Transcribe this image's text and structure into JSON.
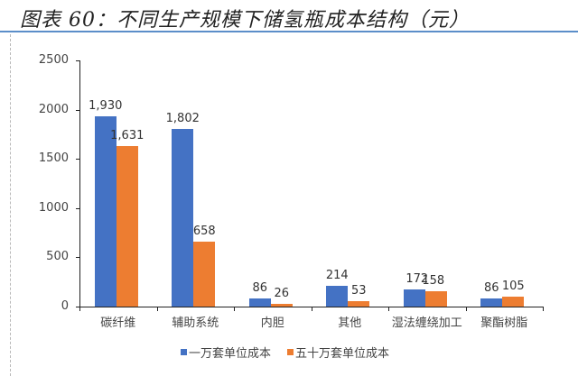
{
  "header": {
    "title": "图表 60：不同生产规模下储氢瓶成本结构（元）"
  },
  "colors": {
    "series1": "#4472C4",
    "series2": "#ED7D31",
    "rule": "#5b8ec9"
  },
  "chart_data": {
    "type": "bar",
    "title": "图表 60：不同生产规模下储氢瓶成本结构（元）",
    "xlabel": "",
    "ylabel": "",
    "ylim": [
      0,
      2500
    ],
    "yticks": [
      0,
      500,
      1000,
      1500,
      2000,
      2500
    ],
    "grid": false,
    "legend_position": "bottom",
    "categories": [
      "碳纤维",
      "辅助系统",
      "内胆",
      "其他",
      "湿法缠绕加工",
      "聚酯树脂"
    ],
    "series": [
      {
        "name": "一万套单位成本",
        "color": "#4472C4",
        "values": [
          1930,
          1802,
          86,
          214,
          172,
          86
        ],
        "labels": [
          "1,930",
          "1,802",
          "86",
          "214",
          "172",
          "86"
        ]
      },
      {
        "name": "五十万套单位成本",
        "color": "#ED7D31",
        "values": [
          1631,
          658,
          26,
          53,
          158,
          105
        ],
        "labels": [
          "1,631",
          "658",
          "26",
          "53",
          "158",
          "105"
        ]
      }
    ]
  }
}
